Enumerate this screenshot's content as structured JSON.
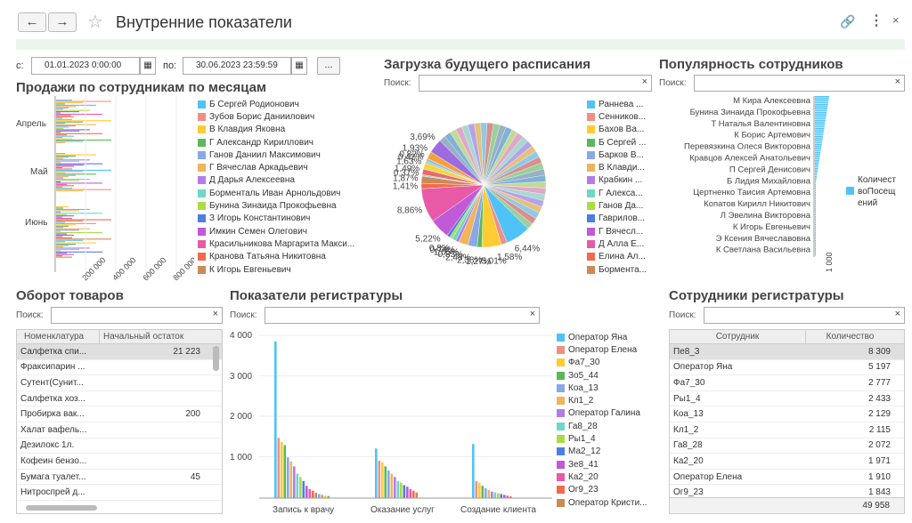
{
  "window": {
    "title": "Внутренние показатели",
    "back_icon": "arrow-left-icon",
    "forward_icon": "arrow-right-icon",
    "star_icon": "star-icon",
    "link_icon": "link-icon",
    "more_icon": "more-icon",
    "close_icon": "close-icon"
  },
  "period": {
    "from_label": "с:",
    "from_value": "01.01.2023  0:00:00",
    "to_label": "по:",
    "to_value": "30.06.2023 23:59:59",
    "more_label": "..."
  },
  "search_label": "Поиск:",
  "clear_label": "×",
  "sales": {
    "title": "Продажи по сотрудникам по месяцам",
    "months": [
      "Апрель",
      "Май",
      "Июнь"
    ],
    "xticks": [
      "200 000",
      "400 000",
      "600 000",
      "800 000"
    ],
    "legend": [
      {
        "name": "Б Сергей Родионович",
        "color": "#4fc3f7"
      },
      {
        "name": "Зубов Борис Даниилович",
        "color": "#ef8f86"
      },
      {
        "name": "В Клавдия Яковна",
        "color": "#ffcc33"
      },
      {
        "name": "Г Александр Кириллович",
        "color": "#5bb85b"
      },
      {
        "name": "Ганов Даниил Максимович",
        "color": "#8aa8e8"
      },
      {
        "name": "Г Вячеслав Аркадьевич",
        "color": "#f0b45c"
      },
      {
        "name": "Д Дарья Алексеевна",
        "color": "#b57be8"
      },
      {
        "name": "Борменталь Иван Арнольдович",
        "color": "#6fd6c9"
      },
      {
        "name": "Бунина Зинаида Прокофьевна",
        "color": "#aadd44"
      },
      {
        "name": "З Игорь Константинович",
        "color": "#4d7fe0"
      },
      {
        "name": "Имкин Семен Олегович",
        "color": "#c25ad8"
      },
      {
        "name": "Красильникова Маргарита Макси...",
        "color": "#e85aa6"
      },
      {
        "name": "Кранова Татьяна Никитовна",
        "color": "#f26a4d"
      },
      {
        "name": "К Игорь Евгеньевич",
        "color": "#cc8a55"
      }
    ]
  },
  "schedule": {
    "title": "Загрузка будущего расписания",
    "slices": [
      {
        "value": 6.44,
        "label": "6,44%",
        "color": "#4fc3f7"
      },
      {
        "value": 1.58,
        "label": "1,58%",
        "color": "#ef8f86"
      },
      {
        "value": 5.01,
        "label": "5,01%",
        "color": "#ffcc33"
      },
      {
        "value": 1.27,
        "label": "1,27%",
        "color": "#5bb85b"
      },
      {
        "value": 2.38,
        "label": "2,38%",
        "color": "#8aa8e8"
      },
      {
        "value": 2.48,
        "label": "2,48%",
        "color": "#f0b45c"
      },
      {
        "value": 0.85,
        "label": "0,85%",
        "color": "#b57be8"
      },
      {
        "value": 1.05,
        "label": "1,05%",
        "color": "#6fd6c9"
      },
      {
        "value": 0.74,
        "label": "0,74%",
        "color": "#aadd44"
      },
      {
        "value": 0.8,
        "label": "0,8%",
        "color": "#4d7fe0"
      },
      {
        "value": 5.22,
        "label": "5,22%",
        "color": "#c25ad8"
      },
      {
        "value": 8.86,
        "label": "8,86%",
        "color": "#e85aa6"
      },
      {
        "value": 1.41,
        "label": "1,41%",
        "color": "#f26a4d"
      },
      {
        "value": 1.87,
        "label": "1,87%",
        "color": "#cc8a55"
      },
      {
        "value": 0.37,
        "label": "0,37%",
        "color": "#7fd8f7"
      },
      {
        "value": 1.49,
        "label": "1,49%",
        "color": "#e86a6a"
      },
      {
        "value": 1.63,
        "label": "1,63%",
        "color": "#f7d34a"
      },
      {
        "value": 0.42,
        "label": "0,42%",
        "color": "#8bd46b"
      },
      {
        "value": 0.82,
        "label": "0,82%",
        "color": "#a3b8ef"
      },
      {
        "value": 1.93,
        "label": "1,93%",
        "color": "#f5a23a"
      },
      {
        "value": 3.69,
        "label": "3,69%",
        "color": "#9d6be0"
      },
      {
        "value": 49.83,
        "label": "",
        "color": "#9ab0c8"
      }
    ],
    "legend": [
      {
        "name": "Раннева ...",
        "color": "#4fc3f7"
      },
      {
        "name": "Сенников...",
        "color": "#ef8f86"
      },
      {
        "name": "Бахов Ва...",
        "color": "#ffcc33"
      },
      {
        "name": "Б Сергей ...",
        "color": "#5bb85b"
      },
      {
        "name": "Барков В...",
        "color": "#8aa8e8"
      },
      {
        "name": "В Клавди...",
        "color": "#f0b45c"
      },
      {
        "name": "Крабкин ...",
        "color": "#b57be8"
      },
      {
        "name": "Г Алекса...",
        "color": "#6fd6c9"
      },
      {
        "name": "Ганов Да...",
        "color": "#aadd44"
      },
      {
        "name": "Гаврилов...",
        "color": "#4d7fe0"
      },
      {
        "name": "Г Вячесл...",
        "color": "#c25ad8"
      },
      {
        "name": "Д Алла Е...",
        "color": "#e85aa6"
      },
      {
        "name": "Елина Ал...",
        "color": "#f26a4d"
      },
      {
        "name": "Бормента...",
        "color": "#cc8a55"
      }
    ]
  },
  "popularity": {
    "title": "Популярность сотрудников",
    "legend": "Количест воПосещ ений",
    "tick": "1 000",
    "names": [
      "М Кира Алексеевна",
      "Бунина Зинаида Прокофьевна",
      "Т Наталья Валентиновна",
      "К Борис Артемович",
      "Перевязкина Олеся Викторовна",
      "Кравцов Алексей Анатольевич",
      "П Сергей Денисович",
      "Б Лидия Михайловна",
      "Цертненко Таисия Артемовна",
      "Копатов Кирилл Никитович",
      "Л Эвелина Викторовна",
      "К Игорь Евгеньевич",
      "Э Ксения Вячеславовна",
      "К Светлана Васильевна"
    ]
  },
  "turnover": {
    "title": "Оборот товаров",
    "columns": [
      "Номенклатура",
      "Начальный остаток"
    ],
    "rows": [
      [
        "Салфетка спи...",
        "21 223"
      ],
      [
        "Фраксипарин ...",
        ""
      ],
      [
        "Сутент(Сунит...",
        ""
      ],
      [
        "Салфетка хоз...",
        ""
      ],
      [
        "Пробирка вак...",
        "200"
      ],
      [
        "Халат вафель...",
        ""
      ],
      [
        "Дезилокс 1л.",
        ""
      ],
      [
        "Кофеин бензо...",
        ""
      ],
      [
        "Бумага туалет...",
        "45"
      ],
      [
        "Нитроспрей д...",
        ""
      ]
    ]
  },
  "registry": {
    "title": "Показатели регистратуры",
    "yticks": [
      "4 000",
      "3 000",
      "2 000",
      "1 000"
    ],
    "categories": [
      "Запись к врачу",
      "Оказание услуг",
      "Создание клиента"
    ],
    "legend": [
      {
        "name": "Оператор Яна",
        "color": "#4fc3f7"
      },
      {
        "name": "Оператор Елена",
        "color": "#ef8f86"
      },
      {
        "name": "Фа7_30",
        "color": "#ffcc33"
      },
      {
        "name": "Зо5_44",
        "color": "#5bb85b"
      },
      {
        "name": "Коа_13",
        "color": "#8aa8e8"
      },
      {
        "name": "Кл1_2",
        "color": "#f0b45c"
      },
      {
        "name": "Оператор Галина",
        "color": "#b57be8"
      },
      {
        "name": "Га8_28",
        "color": "#6fd6c9"
      },
      {
        "name": "Ры1_4",
        "color": "#aadd44"
      },
      {
        "name": "Ма2_12",
        "color": "#4d7fe0"
      },
      {
        "name": "Зе8_41",
        "color": "#c25ad8"
      },
      {
        "name": "Ка2_20",
        "color": "#e85aa6"
      },
      {
        "name": "Ог9_23",
        "color": "#f26a4d"
      },
      {
        "name": "Оператор Кристи...",
        "color": "#cc8a55"
      }
    ],
    "series_values": [
      [
        3850,
        1480,
        1380,
        1300,
        1000,
        900,
        780,
        600,
        520,
        420,
        300,
        220,
        180,
        130,
        100,
        80,
        60,
        50
      ],
      [
        1220,
        920,
        880,
        780,
        680,
        600,
        520,
        420,
        380,
        320,
        280,
        220,
        180,
        140
      ],
      [
        1330,
        420,
        380,
        300,
        240,
        200,
        160,
        140,
        120,
        100,
        80,
        60,
        40
      ]
    ]
  },
  "staff": {
    "title": "Сотрудники регистратуры",
    "columns": [
      "Сотрудник",
      "Количество"
    ],
    "rows": [
      [
        "Пе8_3",
        "8 309"
      ],
      [
        "Оператор Яна",
        "5 197"
      ],
      [
        "Фа7_30",
        "2 777"
      ],
      [
        "Ры1_4",
        "2 433"
      ],
      [
        "Коа_13",
        "2 129"
      ],
      [
        "Кл1_2",
        "2 115"
      ],
      [
        "Га8_28",
        "2 072"
      ],
      [
        "Ка2_20",
        "1 971"
      ],
      [
        "Оператор Елена",
        "1 910"
      ],
      [
        "Ог9_23",
        "1 843"
      ]
    ],
    "total": "49 958"
  },
  "chart_data": [
    {
      "type": "pie",
      "title": "Загрузка будущего расписания",
      "values": [
        6.44,
        1.58,
        5.01,
        1.27,
        2.38,
        2.48,
        0.85,
        1.05,
        0.74,
        0.8,
        5.22,
        8.86,
        1.41,
        1.87,
        0.37,
        1.49,
        1.63,
        0.42,
        0.82,
        1.93,
        3.69
      ]
    },
    {
      "type": "bar",
      "title": "Показатели регистратуры",
      "categories": [
        "Запись к врачу",
        "Оказание услуг",
        "Создание клиента"
      ],
      "ylim": [
        0,
        4000
      ]
    }
  ]
}
